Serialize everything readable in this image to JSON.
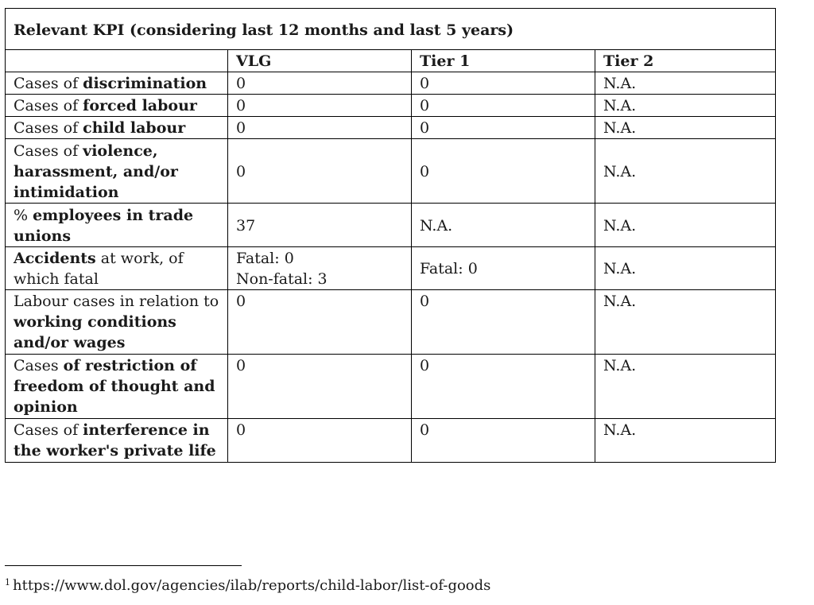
{
  "table": {
    "title": "Relevant KPI (considering last 12 months and last 5 years)",
    "columns": [
      "",
      "VLG",
      "Tier 1",
      "Tier 2"
    ],
    "rows": [
      {
        "label": [
          {
            "t": "Cases of ",
            "b": false
          },
          {
            "t": "discrimination",
            "b": true
          }
        ],
        "vlg": [
          "0"
        ],
        "tier1": [
          "0"
        ],
        "tier2": [
          "N.A."
        ],
        "valign": "top"
      },
      {
        "label": [
          {
            "t": "Cases of ",
            "b": false
          },
          {
            "t": "forced labour",
            "b": true
          }
        ],
        "vlg": [
          "0"
        ],
        "tier1": [
          "0"
        ],
        "tier2": [
          "N.A."
        ],
        "valign": "top"
      },
      {
        "label": [
          {
            "t": "Cases of ",
            "b": false
          },
          {
            "t": "child labour",
            "b": true
          }
        ],
        "vlg": [
          "0"
        ],
        "tier1": [
          "0"
        ],
        "tier2": [
          "N.A."
        ],
        "valign": "top"
      },
      {
        "label": [
          {
            "t": "Cases of ",
            "b": false
          },
          {
            "t": "violence, harassment, and/or intimidation",
            "b": true
          }
        ],
        "vlg": [
          "0"
        ],
        "tier1": [
          "0"
        ],
        "tier2": [
          "N.A."
        ],
        "valign": "middle"
      },
      {
        "label": [
          {
            "t": "% ",
            "b": false
          },
          {
            "t": "employees in trade unions",
            "b": true
          }
        ],
        "vlg": [
          "37"
        ],
        "tier1": [
          "N.A."
        ],
        "tier2": [
          "N.A."
        ],
        "valign": "middle"
      },
      {
        "label": [
          {
            "t": "Accidents",
            "b": true
          },
          {
            "t": " at work, of which fatal",
            "b": false
          }
        ],
        "vlg": [
          "Fatal: 0",
          "Non-fatal: 3"
        ],
        "tier1": [
          "Fatal: 0"
        ],
        "tier2": [
          "N.A."
        ],
        "valign": "middle"
      },
      {
        "label": [
          {
            "t": "Labour cases in relation to ",
            "b": false
          },
          {
            "t": "working conditions and/or wages",
            "b": true
          }
        ],
        "vlg": [
          "0"
        ],
        "tier1": [
          "0"
        ],
        "tier2": [
          "N.A."
        ],
        "valign": "top"
      },
      {
        "label": [
          {
            "t": "Cases ",
            "b": false
          },
          {
            "t": "of restriction of freedom of thought and opinion",
            "b": true
          }
        ],
        "vlg": [
          "0"
        ],
        "tier1": [
          "0"
        ],
        "tier2": [
          "N.A."
        ],
        "valign": "top"
      },
      {
        "label": [
          {
            "t": "Cases of ",
            "b": false
          },
          {
            "t": "interference in the worker's private life",
            "b": true
          }
        ],
        "vlg": [
          "0"
        ],
        "tier1": [
          "0"
        ],
        "tier2": [
          "N.A."
        ],
        "valign": "top"
      }
    ]
  },
  "footnote": {
    "marker": "1",
    "text": "https://www.dol.gov/agencies/ilab/reports/child-labor/list-of-goods"
  }
}
